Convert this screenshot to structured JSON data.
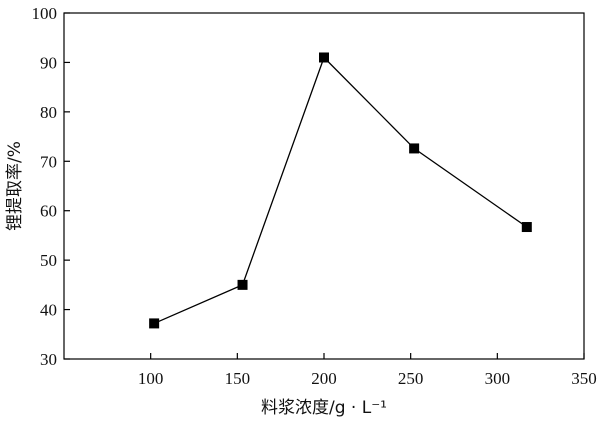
{
  "chart_data": {
    "type": "line",
    "title": "",
    "xlabel": "料浆浓度/g · L⁻¹",
    "ylabel": "锂提取率/%",
    "xlim": [
      50,
      350
    ],
    "ylim": [
      30,
      100
    ],
    "xticks": [
      100,
      150,
      200,
      250,
      300,
      350
    ],
    "yticks": [
      30,
      40,
      50,
      60,
      70,
      80,
      90,
      100
    ],
    "grid": false,
    "legend": "none",
    "series": [
      {
        "marker": "square",
        "color": "#000000",
        "x": [
          102,
          153,
          200,
          252,
          317
        ],
        "y": [
          37.2,
          45.0,
          91.0,
          72.6,
          56.7
        ]
      }
    ]
  }
}
